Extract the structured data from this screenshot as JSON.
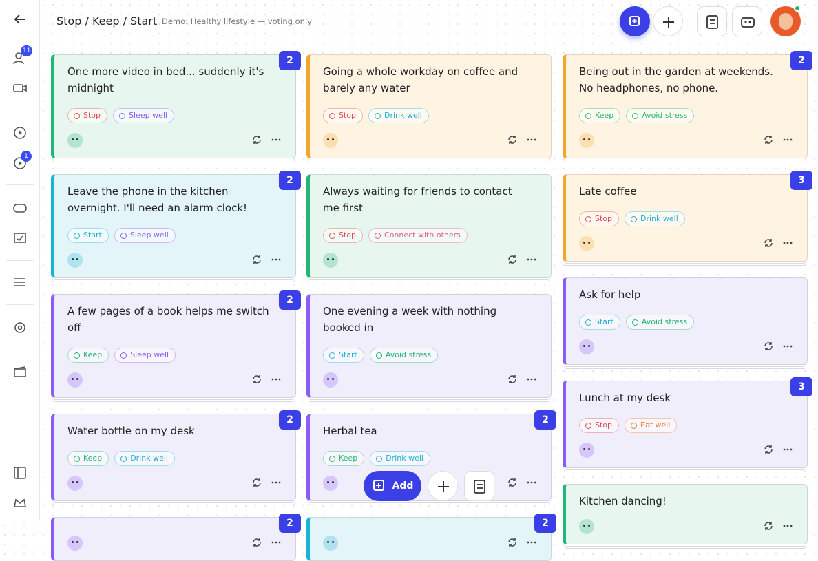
{
  "header": {
    "title": "Stop / Keep / Start",
    "subtitle": "Demo: Healthy lifestyle — voting only"
  },
  "sidebar": {
    "badges": [
      11,
      1
    ]
  },
  "columns": [
    {
      "cards": [
        {
          "text": "One more video in bed... suddenly it's midnight",
          "accent": "#22b573",
          "background": "#e7f6ef",
          "tags": [
            {
              "label": "Stop",
              "color": "#e5484d"
            },
            {
              "label": "Sleep well",
              "color": "#8b5cf6"
            }
          ],
          "votes": 2
        },
        {
          "text": "Leave the phone in the kitchen overnight. I'll need an alarm clock!",
          "accent": "#1ab3d3",
          "background": "#e4f5fa",
          "tags": [
            {
              "label": "Start",
              "color": "#1ab3d3"
            },
            {
              "label": "Sleep well",
              "color": "#8b5cf6"
            }
          ],
          "votes": 2
        },
        {
          "text": "A few pages of a book helps me switch off",
          "accent": "#8b5cf6",
          "background": "#f1eefc",
          "tags": [
            {
              "label": "Keep",
              "color": "#22b573"
            },
            {
              "label": "Sleep well",
              "color": "#8b5cf6"
            }
          ],
          "votes": 2
        },
        {
          "text": "Water bottle on my desk",
          "accent": "#8b5cf6",
          "background": "#f1eefc",
          "tags": [
            {
              "label": "Keep",
              "color": "#22b573"
            },
            {
              "label": "Drink well",
              "color": "#1ab3d3"
            }
          ],
          "votes": 2
        },
        {
          "accent": "#8b5cf6",
          "background": "#f1eefc",
          "votes": 2
        }
      ]
    },
    {
      "cards": [
        {
          "text": "Going a whole workday on coffee and barely any water",
          "accent": "#f2a72c",
          "background": "#fff3e2",
          "tags": [
            {
              "label": "Stop",
              "color": "#e5484d"
            },
            {
              "label": "Drink well",
              "color": "#1ab3d3"
            }
          ]
        },
        {
          "text": "Always waiting for friends to contact me first",
          "accent": "#22b573",
          "background": "#e7f6ef",
          "tags": [
            {
              "label": "Stop",
              "color": "#e5484d"
            },
            {
              "label": "Connect with others",
              "color": "#e05a9a"
            }
          ]
        },
        {
          "text": "One evening a week with nothing booked in",
          "accent": "#8b5cf6",
          "background": "#f1eefc",
          "tags": [
            {
              "label": "Start",
              "color": "#1ab3d3"
            },
            {
              "label": "Avoid stress",
              "color": "#22b573"
            }
          ]
        },
        {
          "text": "Herbal tea",
          "accent": "#8b5cf6",
          "background": "#f1eefc",
          "tags": [
            {
              "label": "Keep",
              "color": "#22b573"
            },
            {
              "label": "Drink well",
              "color": "#1ab3d3"
            }
          ],
          "votes": 2
        },
        {
          "accent": "#1ab3d3",
          "background": "#e4f5fa",
          "votes": 2
        }
      ]
    },
    {
      "cards": [
        {
          "text": "Being out in the garden at weekends. No headphones, no phone.",
          "accent": "#f2a72c",
          "background": "#fff3e2",
          "tags": [
            {
              "label": "Keep",
              "color": "#22b573"
            },
            {
              "label": "Avoid stress",
              "color": "#22b573"
            }
          ],
          "votes": 2
        },
        {
          "text": "Late coffee",
          "accent": "#f2a72c",
          "background": "#fff3e2",
          "tags": [
            {
              "label": "Stop",
              "color": "#e5484d"
            },
            {
              "label": "Drink well",
              "color": "#1ab3d3"
            }
          ],
          "votes": 3
        },
        {
          "text": "Ask for help",
          "accent": "#8b5cf6",
          "background": "#f1eefc",
          "tags": [
            {
              "label": "Start",
              "color": "#1ab3d3"
            },
            {
              "label": "Avoid stress",
              "color": "#22b573"
            }
          ]
        },
        {
          "text": "Lunch at my desk",
          "accent": "#8b5cf6",
          "background": "#f1eefc",
          "tags": [
            {
              "label": "Stop",
              "color": "#e5484d"
            },
            {
              "label": "Eat well",
              "color": "#f07c2c"
            }
          ],
          "votes": 3
        },
        {
          "text": "Kitchen dancing!",
          "accent": "#22b573",
          "background": "#e7f6ef"
        }
      ]
    }
  ],
  "toolbar": {
    "add": "Add"
  }
}
